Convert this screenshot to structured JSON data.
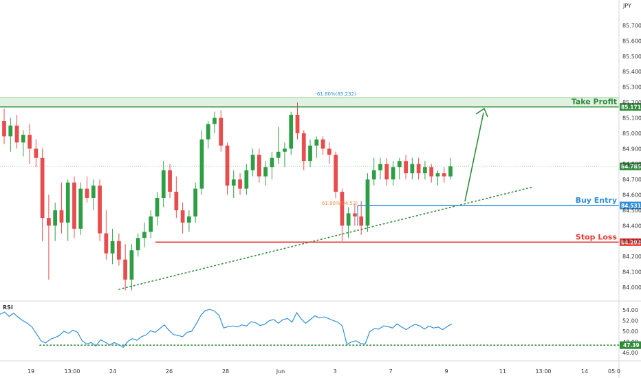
{
  "chart_data": [
    {
      "type": "candlestick",
      "currency_label": "JPY",
      "ylim": [
        83.9,
        85.8
      ],
      "y_ticks": [
        "85.700",
        "85.600",
        "85.500",
        "85.400",
        "85.300",
        "85.200",
        "85.100",
        "85.000",
        "84.900",
        "84.800",
        "84.700",
        "84.600",
        "84.500",
        "84.400",
        "84.300",
        "84.200",
        "84.100",
        "84.000"
      ],
      "x_ticks": [
        "19",
        "13:00",
        "24",
        "26",
        "28",
        "Jun",
        "3",
        "7",
        "9",
        "11",
        "13:00",
        "14",
        "05:0"
      ],
      "candles": [
        {
          "o": 85.08,
          "h": 85.16,
          "l": 84.93,
          "c": 84.98
        },
        {
          "o": 84.98,
          "h": 85.1,
          "l": 84.88,
          "c": 85.05
        },
        {
          "o": 85.05,
          "h": 85.12,
          "l": 84.9,
          "c": 84.94
        },
        {
          "o": 84.94,
          "h": 85.02,
          "l": 84.85,
          "c": 84.99
        },
        {
          "o": 84.99,
          "h": 85.06,
          "l": 84.8,
          "c": 84.9
        },
        {
          "o": 84.9,
          "h": 84.96,
          "l": 84.78,
          "c": 84.84
        },
        {
          "o": 84.84,
          "h": 84.9,
          "l": 84.3,
          "c": 84.45
        },
        {
          "o": 84.45,
          "h": 84.6,
          "l": 84.05,
          "c": 84.4
        },
        {
          "o": 84.4,
          "h": 84.55,
          "l": 84.3,
          "c": 84.5
        },
        {
          "o": 84.5,
          "h": 84.68,
          "l": 84.35,
          "c": 84.42
        },
        {
          "o": 84.42,
          "h": 84.7,
          "l": 84.3,
          "c": 84.68
        },
        {
          "o": 84.68,
          "h": 84.72,
          "l": 84.32,
          "c": 84.38
        },
        {
          "o": 84.38,
          "h": 84.68,
          "l": 84.34,
          "c": 84.64
        },
        {
          "o": 84.64,
          "h": 84.72,
          "l": 84.55,
          "c": 84.58
        },
        {
          "o": 84.58,
          "h": 84.7,
          "l": 84.5,
          "c": 84.66
        },
        {
          "o": 84.66,
          "h": 84.7,
          "l": 84.3,
          "c": 84.35
        },
        {
          "o": 84.35,
          "h": 84.5,
          "l": 84.18,
          "c": 84.22
        },
        {
          "o": 84.22,
          "h": 84.38,
          "l": 84.15,
          "c": 84.3
        },
        {
          "o": 84.3,
          "h": 84.35,
          "l": 84.14,
          "c": 84.18
        },
        {
          "o": 84.18,
          "h": 84.28,
          "l": 83.98,
          "c": 84.05
        },
        {
          "o": 84.05,
          "h": 84.28,
          "l": 83.98,
          "c": 84.24
        },
        {
          "o": 84.24,
          "h": 84.35,
          "l": 84.2,
          "c": 84.32
        },
        {
          "o": 84.32,
          "h": 84.42,
          "l": 84.26,
          "c": 84.36
        },
        {
          "o": 84.36,
          "h": 84.5,
          "l": 84.32,
          "c": 84.46
        },
        {
          "o": 84.46,
          "h": 84.62,
          "l": 84.4,
          "c": 84.58
        },
        {
          "o": 84.58,
          "h": 84.82,
          "l": 84.52,
          "c": 84.76
        },
        {
          "o": 84.76,
          "h": 84.8,
          "l": 84.58,
          "c": 84.62
        },
        {
          "o": 84.62,
          "h": 84.72,
          "l": 84.45,
          "c": 84.5
        },
        {
          "o": 84.5,
          "h": 84.55,
          "l": 84.35,
          "c": 84.42
        },
        {
          "o": 84.42,
          "h": 84.5,
          "l": 84.36,
          "c": 84.46
        },
        {
          "o": 84.46,
          "h": 84.68,
          "l": 84.42,
          "c": 84.64
        },
        {
          "o": 84.64,
          "h": 85.02,
          "l": 84.6,
          "c": 84.96
        },
        {
          "o": 84.96,
          "h": 85.08,
          "l": 84.9,
          "c": 85.06
        },
        {
          "o": 85.06,
          "h": 85.14,
          "l": 85.0,
          "c": 85.1
        },
        {
          "o": 85.1,
          "h": 85.15,
          "l": 84.88,
          "c": 84.92
        },
        {
          "o": 84.92,
          "h": 84.94,
          "l": 84.6,
          "c": 84.66
        },
        {
          "o": 84.66,
          "h": 84.76,
          "l": 84.58,
          "c": 84.7
        },
        {
          "o": 84.7,
          "h": 84.74,
          "l": 84.6,
          "c": 84.64
        },
        {
          "o": 84.64,
          "h": 84.8,
          "l": 84.6,
          "c": 84.76
        },
        {
          "o": 84.76,
          "h": 84.9,
          "l": 84.72,
          "c": 84.86
        },
        {
          "o": 84.86,
          "h": 84.9,
          "l": 84.68,
          "c": 84.72
        },
        {
          "o": 84.72,
          "h": 84.82,
          "l": 84.66,
          "c": 84.78
        },
        {
          "o": 84.78,
          "h": 84.88,
          "l": 84.7,
          "c": 84.84
        },
        {
          "o": 84.84,
          "h": 85.04,
          "l": 84.8,
          "c": 84.88
        },
        {
          "o": 84.88,
          "h": 84.94,
          "l": 84.78,
          "c": 84.9
        },
        {
          "o": 84.9,
          "h": 85.14,
          "l": 84.86,
          "c": 85.12
        },
        {
          "o": 85.12,
          "h": 85.2,
          "l": 84.96,
          "c": 85.0
        },
        {
          "o": 85.0,
          "h": 85.02,
          "l": 84.76,
          "c": 84.82
        },
        {
          "o": 84.82,
          "h": 84.96,
          "l": 84.78,
          "c": 84.92
        },
        {
          "o": 84.92,
          "h": 84.98,
          "l": 84.84,
          "c": 84.96
        },
        {
          "o": 84.96,
          "h": 84.98,
          "l": 84.86,
          "c": 84.9
        },
        {
          "o": 84.9,
          "h": 84.94,
          "l": 84.8,
          "c": 84.86
        },
        {
          "o": 84.86,
          "h": 84.88,
          "l": 84.58,
          "c": 84.62
        },
        {
          "o": 84.62,
          "h": 84.64,
          "l": 84.3,
          "c": 84.4
        },
        {
          "o": 84.4,
          "h": 84.52,
          "l": 84.32,
          "c": 84.48
        },
        {
          "o": 84.48,
          "h": 84.54,
          "l": 84.4,
          "c": 84.46
        },
        {
          "o": 84.46,
          "h": 84.56,
          "l": 84.34,
          "c": 84.4
        },
        {
          "o": 84.4,
          "h": 84.74,
          "l": 84.36,
          "c": 84.7
        },
        {
          "o": 84.7,
          "h": 84.84,
          "l": 84.66,
          "c": 84.76
        },
        {
          "o": 84.76,
          "h": 84.84,
          "l": 84.7,
          "c": 84.8
        },
        {
          "o": 84.8,
          "h": 84.84,
          "l": 84.66,
          "c": 84.7
        },
        {
          "o": 84.7,
          "h": 84.82,
          "l": 84.66,
          "c": 84.78
        },
        {
          "o": 84.78,
          "h": 84.84,
          "l": 84.7,
          "c": 84.82
        },
        {
          "o": 84.82,
          "h": 84.86,
          "l": 84.7,
          "c": 84.74
        },
        {
          "o": 84.74,
          "h": 84.84,
          "l": 84.7,
          "c": 84.8
        },
        {
          "o": 84.8,
          "h": 84.84,
          "l": 84.7,
          "c": 84.74
        },
        {
          "o": 84.74,
          "h": 84.82,
          "l": 84.7,
          "c": 84.78
        },
        {
          "o": 84.78,
          "h": 84.8,
          "l": 84.68,
          "c": 84.72
        },
        {
          "o": 84.72,
          "h": 84.76,
          "l": 84.66,
          "c": 84.74
        },
        {
          "o": 84.74,
          "h": 84.78,
          "l": 84.68,
          "c": 84.72
        },
        {
          "o": 84.72,
          "h": 84.84,
          "l": 84.7,
          "c": 84.785
        }
      ],
      "levels": {
        "take_profit": {
          "label": "Take Profit",
          "value": 85.171,
          "tag": "85.171",
          "color": "#2e8b3a"
        },
        "buy_entry": {
          "label": "Buy Entry",
          "value": 84.531,
          "tag": "84.531",
          "color": "#2f8fd8"
        },
        "stop_loss": {
          "label": "Stop Loss",
          "value": 84.293,
          "tag": "84.293",
          "color": "#e53935"
        },
        "current_price": {
          "value": 84.785,
          "tag": "84.785",
          "color": "#2e8b3a"
        }
      },
      "annotations": {
        "fib_top": "-61.80%(85.232)",
        "fib_mid": "61.80%(84.53)"
      },
      "up_color": "#2e9e45",
      "down_color": "#e84c4c"
    },
    {
      "type": "line",
      "title": "RSI",
      "ylim": [
        46,
        55
      ],
      "y_ticks": [
        "54.00",
        "52.00",
        "50.00",
        "48.00",
        "46.00"
      ],
      "support_tag": "47.39",
      "support_value": 47.39,
      "line_color": "#2f8fd8",
      "values": [
        53.2,
        53.6,
        52.8,
        53.4,
        52.6,
        52.0,
        51.5,
        50.8,
        49.5,
        48.2,
        47.8,
        48.5,
        48.8,
        49.2,
        50.0,
        49.6,
        50.2,
        49.8,
        48.2,
        47.6,
        47.9,
        47.2,
        48.4,
        48.0,
        47.4,
        47.9,
        47.5,
        47.0,
        48.1,
        48.6,
        48.3,
        49.0,
        49.3,
        50.1,
        49.8,
        50.5,
        51.2,
        50.2,
        49.4,
        49.2,
        49.0,
        49.8,
        50.0,
        51.4,
        53.0,
        53.9,
        54.1,
        53.8,
        53.0,
        50.6,
        50.9,
        51.0,
        50.8,
        51.2,
        51.0,
        51.8,
        51.6,
        51.1,
        51.3,
        52.0,
        52.2,
        51.5,
        52.2,
        52.4,
        51.7,
        53.5,
        52.3,
        51.5,
        52.2,
        52.9,
        52.5,
        52.7,
        52.4,
        52.0,
        51.7,
        51.0,
        47.5,
        48.0,
        48.2,
        47.7,
        47.6,
        49.9,
        50.5,
        50.4,
        51.0,
        50.9,
        50.6,
        51.4,
        50.8,
        50.3,
        50.9,
        51.3,
        51.0,
        50.4,
        51.0,
        50.6,
        50.8,
        50.3,
        50.9,
        51.4
      ]
    }
  ]
}
